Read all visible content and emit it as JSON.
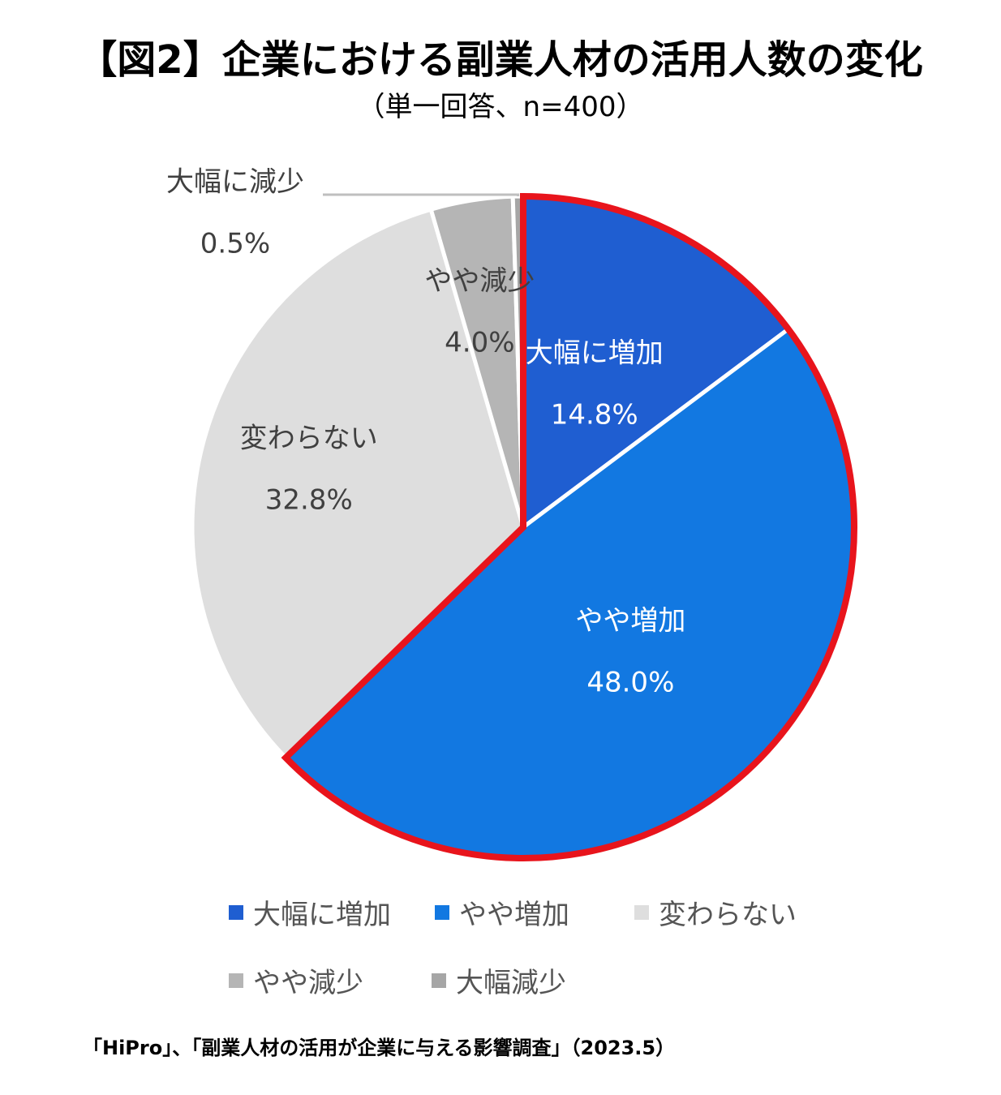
{
  "chart_data": {
    "type": "pie",
    "title": "【図2】企業における副業人材の活用人数の変化",
    "subtitle": "（単一回答、n=400）",
    "start_angle_deg": 0,
    "direction": "clockwise",
    "highlight_color": "#E8141C",
    "highlighted_slices": [
      "大幅に増加",
      "やや増加"
    ],
    "slices": [
      {
        "label": "大幅に増加",
        "value": 14.8,
        "value_label": "14.8%",
        "color": "#1F5ED1",
        "text_color": "#FFFFFF"
      },
      {
        "label": "やや増加",
        "value": 48.0,
        "value_label": "48.0%",
        "color": "#1278E1",
        "text_color": "#FFFFFF"
      },
      {
        "label": "変わらない",
        "value": 32.8,
        "value_label": "32.8%",
        "color": "#DEDEDE",
        "text_color": "#404040"
      },
      {
        "label": "やや減少",
        "value": 4.0,
        "value_label": "4.0%",
        "color": "#B5B5B5",
        "text_color": "#404040"
      },
      {
        "label": "大幅に減少",
        "value": 0.5,
        "value_label": "0.5%",
        "color": "#A6A6A6",
        "text_color": "#404040"
      }
    ],
    "legend": [
      {
        "label": "大幅に増加",
        "color": "#1F5ED1"
      },
      {
        "label": "やや増加",
        "color": "#1278E1"
      },
      {
        "label": "変わらない",
        "color": "#DEDEDE"
      },
      {
        "label": "やや減少",
        "color": "#B5B5B5"
      },
      {
        "label": "大幅減少",
        "color": "#A6A6A6"
      }
    ],
    "legend_position": "bottom"
  },
  "source": "「HiPro」、「副業人材の活用が企業に与える影響調査」（2023.5）"
}
